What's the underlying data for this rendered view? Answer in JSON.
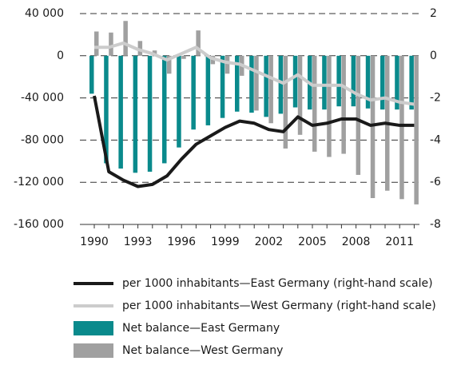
{
  "chart_data": {
    "type": "bar",
    "categories": [
      "1990",
      null,
      null,
      "1993",
      null,
      null,
      "1996",
      null,
      null,
      "1999",
      null,
      null,
      "2002",
      null,
      null,
      "2005",
      null,
      null,
      "2008",
      null,
      null,
      "2011",
      null
    ],
    "series": [
      {
        "name": "Net balance—East Germany",
        "color": "#0a8a8c",
        "values": [
          -36000,
          -102000,
          -107000,
          -111000,
          -110000,
          -102000,
          -87000,
          -70000,
          -66000,
          -59000,
          -53000,
          -54000,
          -58000,
          -55000,
          -49000,
          -51000,
          -51000,
          -48000,
          -48000,
          -50000,
          -51000,
          -51000,
          -51000
        ]
      },
      {
        "name": "Net balance—West Germany",
        "color": "#a0a0a0",
        "values": [
          23000,
          22000,
          33000,
          14000,
          5000,
          -17000,
          -3000,
          24000,
          -8000,
          -17000,
          -19000,
          -52000,
          -64000,
          -88000,
          -75000,
          -91000,
          -96000,
          -93000,
          -113000,
          -135000,
          -128000,
          -136000,
          -141000
        ]
      },
      {
        "name": "per 1000 inhabitants—East Germany (right-hand scale)",
        "color": "#1a1a1a",
        "axis": "y2",
        "line": true,
        "values": [
          -1.9,
          -5.5,
          -5.9,
          -6.2,
          -6.1,
          -5.7,
          -4.9,
          -4.2,
          -3.8,
          -3.4,
          -3.1,
          -3.2,
          -3.5,
          -3.6,
          -2.9,
          -3.3,
          -3.2,
          -3.0,
          -3.0,
          -3.3,
          -3.2,
          -3.3,
          -3.3
        ]
      },
      {
        "name": "per 1000 inhabitants—West Germany (right-hand scale)",
        "color": "#cccccc",
        "axis": "y2",
        "line": true,
        "values": [
          0.4,
          0.4,
          0.6,
          0.3,
          0.1,
          -0.2,
          0.1,
          0.4,
          -0.1,
          -0.3,
          -0.4,
          -0.7,
          -1.0,
          -1.3,
          -0.9,
          -1.4,
          -1.4,
          -1.4,
          -1.8,
          -2.1,
          -2.0,
          -2.2,
          -2.3
        ]
      }
    ],
    "ylim": [
      -160000,
      40000
    ],
    "yticks": [
      {
        "value": 40000,
        "label": "40 000"
      },
      0,
      {
        "value": -40000,
        "label": "-40 000"
      },
      {
        "value": -80000,
        "label": "-80 000"
      },
      {
        "value": -120000,
        "label": "-120 000"
      },
      {
        "value": -160000,
        "label": "-160 000"
      }
    ],
    "y2lim": [
      -8,
      2
    ],
    "y2ticks": [
      2,
      0,
      -2,
      -4,
      -6,
      -8
    ],
    "grid": true
  }
}
